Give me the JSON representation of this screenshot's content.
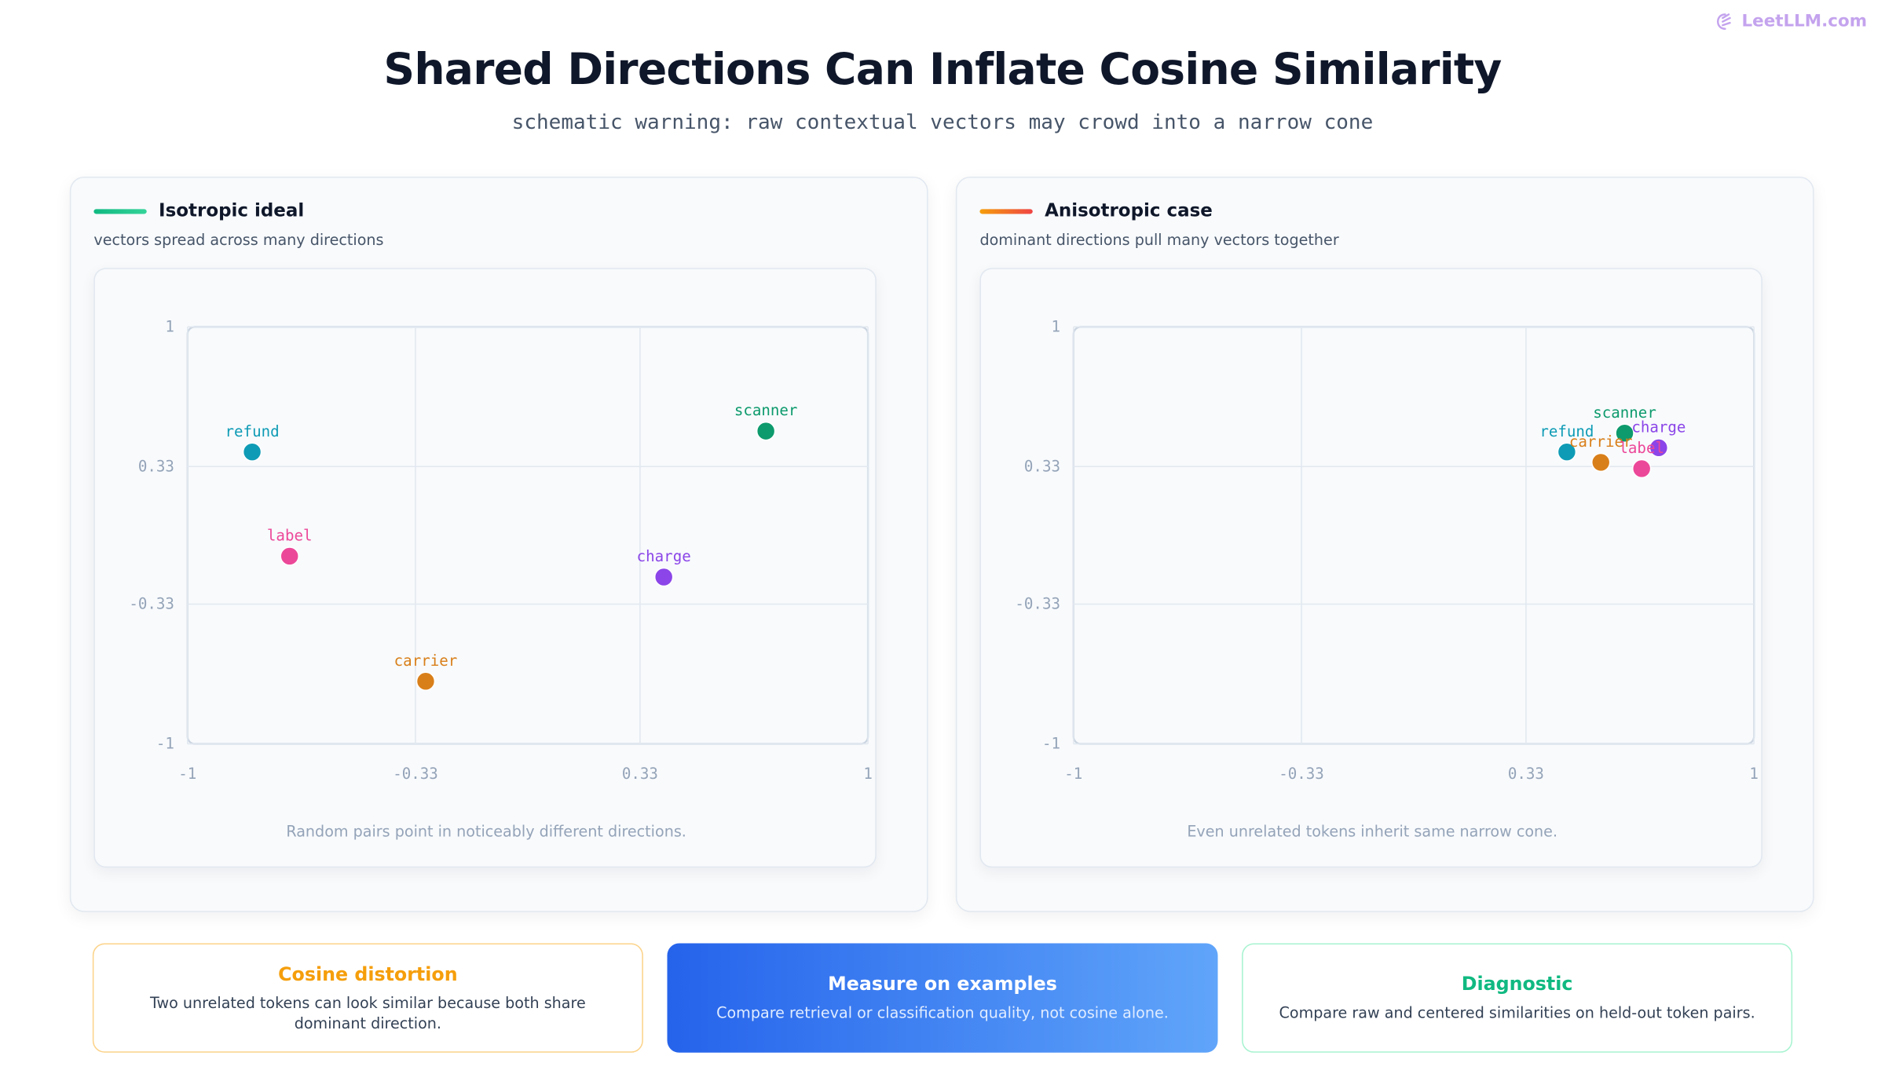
{
  "header": {
    "brand": "LeetLLM.com",
    "title": "Shared Directions Can Inflate Cosine Similarity",
    "subtitle": "schematic warning: raw contextual vectors may crowd into a narrow cone"
  },
  "chart_data": [
    {
      "type": "scatter",
      "title": "Isotropic ideal",
      "subtitle": "vectors spread across many directions",
      "caption": "Random pairs point in noticeably different directions.",
      "xlim": [
        -1,
        1
      ],
      "ylim": [
        -1,
        1
      ],
      "xticks": [
        -1,
        -0.33,
        0.33,
        1
      ],
      "yticks": [
        -1,
        -0.33,
        0.33,
        1
      ],
      "grid": true,
      "series": [
        {
          "name": "refund",
          "color": "#0e9bb5",
          "x": [
            -0.81
          ],
          "values": [
            0.4
          ]
        },
        {
          "name": "scanner",
          "color": "#0d9a6c",
          "x": [
            0.7
          ],
          "values": [
            0.5
          ]
        },
        {
          "name": "label",
          "color": "#ec4899",
          "x": [
            -0.7
          ],
          "values": [
            -0.1
          ]
        },
        {
          "name": "charge",
          "color": "#8b45e8",
          "x": [
            0.4
          ],
          "values": [
            -0.2
          ]
        },
        {
          "name": "carrier",
          "color": "#d97f1a",
          "x": [
            -0.3
          ],
          "values": [
            -0.7
          ]
        }
      ]
    },
    {
      "type": "scatter",
      "title": "Anisotropic case",
      "subtitle": "dominant directions pull many vectors together",
      "caption": "Even unrelated tokens inherit same narrow cone.",
      "xlim": [
        -1,
        1
      ],
      "ylim": [
        -1,
        1
      ],
      "xticks": [
        -1,
        -0.33,
        0.33,
        1
      ],
      "yticks": [
        -1,
        -0.33,
        0.33,
        1
      ],
      "grid": true,
      "series": [
        {
          "name": "refund",
          "color": "#0e9bb5",
          "x": [
            0.45
          ],
          "values": [
            0.4
          ]
        },
        {
          "name": "scanner",
          "color": "#0d9a6c",
          "x": [
            0.62
          ],
          "values": [
            0.49
          ]
        },
        {
          "name": "charge",
          "color": "#8b45e8",
          "x": [
            0.72
          ],
          "values": [
            0.42
          ]
        },
        {
          "name": "carrier",
          "color": "#d97f1a",
          "x": [
            0.55
          ],
          "values": [
            0.35
          ]
        },
        {
          "name": "label",
          "color": "#ec4899",
          "x": [
            0.67
          ],
          "values": [
            0.32
          ]
        }
      ]
    }
  ],
  "cards": [
    {
      "title": "Cosine distortion",
      "text": "Two unrelated tokens can look similar because both share dominant direction."
    },
    {
      "title": "Measure on examples",
      "text": "Compare retrieval or classification quality, not cosine alone."
    },
    {
      "title": "Diagnostic",
      "text": "Compare raw and centered similarities on held-out token pairs."
    }
  ]
}
